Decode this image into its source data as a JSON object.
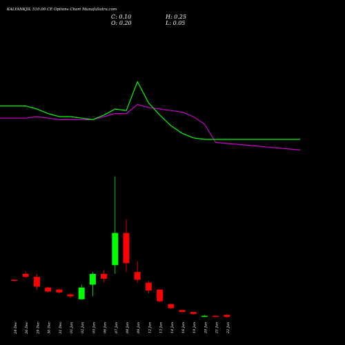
{
  "header": {
    "title": "KALYANKJIL 510.00 CE Options Chart MunafaSutra.com",
    "close_label": "C:",
    "close_value": "0.10",
    "open_label": "O:",
    "open_value": "0.20",
    "high_label": "H:",
    "high_value": "0.25",
    "low_label": "L:",
    "low_value": "0.05"
  },
  "chart_data": {
    "type": "candlestick",
    "title": "KALYANKJIL 510.00 CE Options Chart MunafaSutra.com",
    "colors": {
      "up": "#00ff00",
      "down": "#ff0000",
      "ma_fast": "#00ff00",
      "ma_slow": "#cc00cc",
      "background": "#000000",
      "text": "#ffffff"
    },
    "candles": [
      {
        "date": "24 Dec",
        "open": 1.95,
        "high": 2.0,
        "low": 1.9,
        "close": 2.0,
        "dir": "down"
      },
      {
        "date": "26 Dec",
        "open": 2.3,
        "high": 2.45,
        "low": 2.1,
        "close": 2.15,
        "dir": "down"
      },
      {
        "date": "29 Dec",
        "open": 2.15,
        "high": 2.3,
        "low": 1.5,
        "close": 1.65,
        "dir": "down"
      },
      {
        "date": "30 Dec",
        "open": 1.6,
        "high": 1.65,
        "low": 1.35,
        "close": 1.4,
        "dir": "down"
      },
      {
        "date": "31 Dec",
        "open": 1.5,
        "high": 1.55,
        "low": 1.3,
        "close": 1.35,
        "dir": "down"
      },
      {
        "date": "01 Jan",
        "open": 1.25,
        "high": 1.3,
        "low": 1.05,
        "close": 1.15,
        "dir": "down"
      },
      {
        "date": "02 Jan",
        "open": 1.0,
        "high": 1.75,
        "low": 1.0,
        "close": 1.6,
        "dir": "up"
      },
      {
        "date": "05 Jan",
        "open": 1.75,
        "high": 2.4,
        "low": 1.15,
        "close": 2.3,
        "dir": "up"
      },
      {
        "date": "06 Jan",
        "open": 2.3,
        "high": 2.5,
        "low": 1.85,
        "close": 2.05,
        "dir": "down"
      },
      {
        "date": "07 Jan",
        "open": 2.75,
        "high": 7.3,
        "low": 2.3,
        "close": 4.4,
        "dir": "up"
      },
      {
        "date": "08 Jan",
        "open": 4.4,
        "high": 5.1,
        "low": 2.4,
        "close": 2.85,
        "dir": "down"
      },
      {
        "date": "09 Jan",
        "open": 2.4,
        "high": 2.95,
        "low": 1.85,
        "close": 2.0,
        "dir": "down"
      },
      {
        "date": "12 Jan",
        "open": 1.85,
        "high": 1.95,
        "low": 1.3,
        "close": 1.45,
        "dir": "down"
      },
      {
        "date": "13 Jan",
        "open": 1.5,
        "high": 1.5,
        "low": 0.85,
        "close": 0.9,
        "dir": "down"
      },
      {
        "date": "14 Jan",
        "open": 0.75,
        "high": 0.8,
        "low": 0.5,
        "close": 0.55,
        "dir": "down"
      },
      {
        "date": "16 Jan",
        "open": 0.45,
        "high": 0.45,
        "low": 0.35,
        "close": 0.35,
        "dir": "down"
      },
      {
        "date": "19 Jan",
        "open": 0.35,
        "high": 0.35,
        "low": 0.2,
        "close": 0.25,
        "dir": "down"
      },
      {
        "date": "20 Jan",
        "open": 0.15,
        "high": 0.2,
        "low": 0.15,
        "close": 0.15,
        "dir": "up"
      },
      {
        "date": "21 Jan",
        "open": 0.15,
        "high": 0.15,
        "low": 0.1,
        "close": 0.1,
        "dir": "down"
      },
      {
        "date": "22 Jan",
        "open": 0.2,
        "high": 0.25,
        "low": 0.05,
        "close": 0.1,
        "dir": "down"
      }
    ],
    "ylim": [
      0,
      7.5
    ],
    "ma_fast": [
      0.62,
      0.62,
      0.6,
      0.57,
      0.55,
      0.55,
      0.54,
      0.53,
      0.56,
      0.6,
      0.59,
      0.78,
      0.64,
      0.56,
      0.49,
      0.44,
      0.41,
      0.4,
      0.4,
      0.4
    ],
    "ma_slow": [
      0.54,
      0.54,
      0.55,
      0.54,
      0.53,
      0.53,
      0.53,
      0.53,
      0.55,
      0.57,
      0.57,
      0.63,
      0.61,
      0.6,
      0.59,
      0.58,
      0.55,
      0.5,
      0.38,
      0.33
    ],
    "ma_range": [
      0,
      1
    ],
    "xlabel": "",
    "ylabel": "",
    "grid": false
  }
}
